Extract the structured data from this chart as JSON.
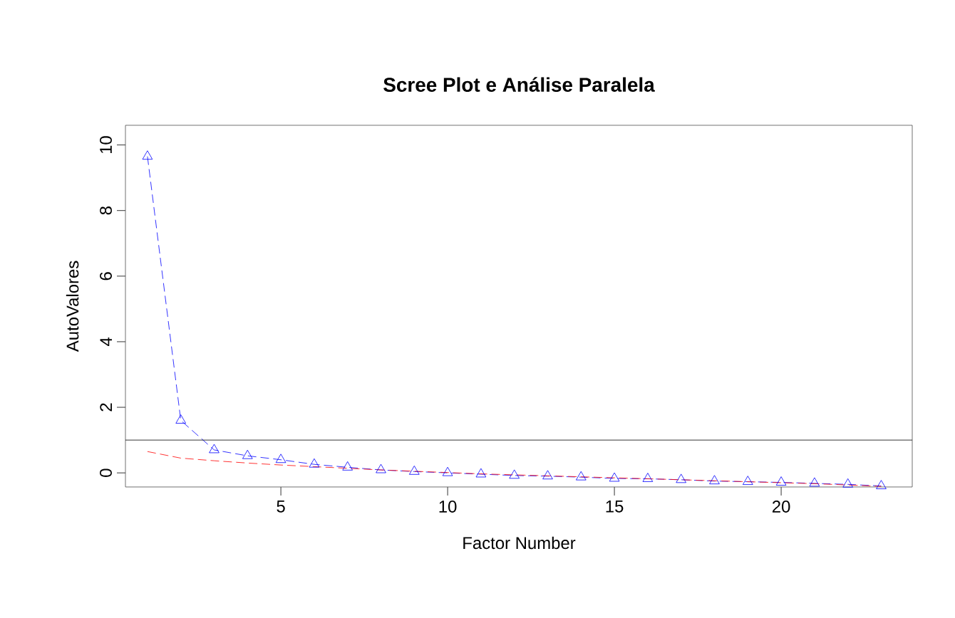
{
  "chart_data": {
    "type": "line",
    "title": "Scree Plot e Análise Paralela",
    "xlabel": "Factor Number",
    "ylabel": "AutoValores",
    "x": [
      1,
      2,
      3,
      4,
      5,
      6,
      7,
      8,
      9,
      10,
      11,
      12,
      13,
      14,
      15,
      16,
      17,
      18,
      19,
      20,
      21,
      22,
      23
    ],
    "series": [
      {
        "color": "#0000ff",
        "marker": "triangle",
        "line_style": "dashed",
        "values": [
          9.65,
          1.6,
          0.7,
          0.52,
          0.4,
          0.26,
          0.17,
          0.09,
          0.04,
          0,
          -0.04,
          -0.08,
          -0.1,
          -0.13,
          -0.17,
          -0.18,
          -0.21,
          -0.25,
          -0.27,
          -0.29,
          -0.32,
          -0.35,
          -0.4
        ]
      },
      {
        "color": "#ff0000",
        "marker": "none",
        "line_style": "dashed",
        "values": [
          0.65,
          0.45,
          0.37,
          0.3,
          0.24,
          0.19,
          0.14,
          0.09,
          0.05,
          0.01,
          -0.03,
          -0.06,
          -0.09,
          -0.12,
          -0.15,
          -0.18,
          -0.21,
          -0.24,
          -0.27,
          -0.3,
          -0.33,
          -0.37,
          -0.41
        ]
      }
    ],
    "xlim": [
      0.34,
      23.93
    ],
    "ylim": [
      -0.43,
      10.6
    ],
    "xticks": [
      5,
      10,
      15,
      20
    ],
    "yticks": [
      0,
      2,
      4,
      6,
      8,
      10
    ],
    "ref_lines": [
      {
        "axis": "y",
        "value": 1,
        "color": "#000000"
      }
    ]
  }
}
